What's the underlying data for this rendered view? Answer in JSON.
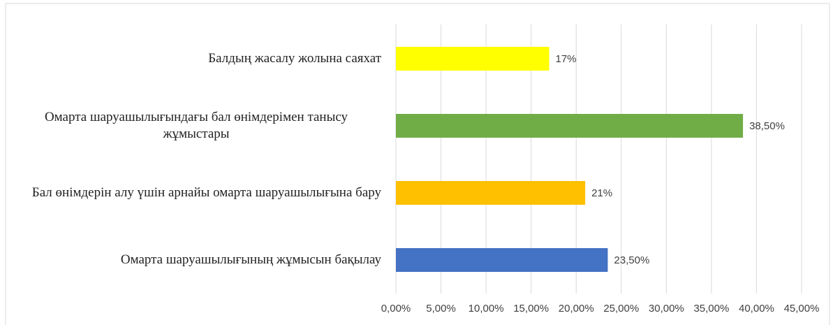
{
  "chart_data": {
    "type": "bar",
    "orientation": "horizontal",
    "categories": [
      "Балдың жасалу жолына саяхат",
      "Омарта шаруашылығындағы бал өнімдерімен танысу жұмыстары",
      "Бал өнімдерін алу үшін арнайы омарта шаруашылығына бару",
      "Омарта шаруашылығының жұмысын бақылау"
    ],
    "values": [
      17,
      38.5,
      21,
      23.5
    ],
    "value_labels": [
      "17%",
      "38,50%",
      "21%",
      "23,50%"
    ],
    "colors": [
      "#ffff00",
      "#70ad47",
      "#ffc000",
      "#4472c4"
    ],
    "xlim": [
      0,
      45
    ],
    "xticks": [
      {
        "value": 0,
        "label": "0,00%"
      },
      {
        "value": 5,
        "label": "5,00%"
      },
      {
        "value": 10,
        "label": "10,00%"
      },
      {
        "value": 15,
        "label": "15,00%"
      },
      {
        "value": 20,
        "label": "20,00%"
      },
      {
        "value": 25,
        "label": "25,00%"
      },
      {
        "value": 30,
        "label": "30,00%"
      },
      {
        "value": 35,
        "label": "35,00%"
      },
      {
        "value": 40,
        "label": "40,00%"
      },
      {
        "value": 45,
        "label": "45,00%"
      }
    ],
    "grid": true
  }
}
